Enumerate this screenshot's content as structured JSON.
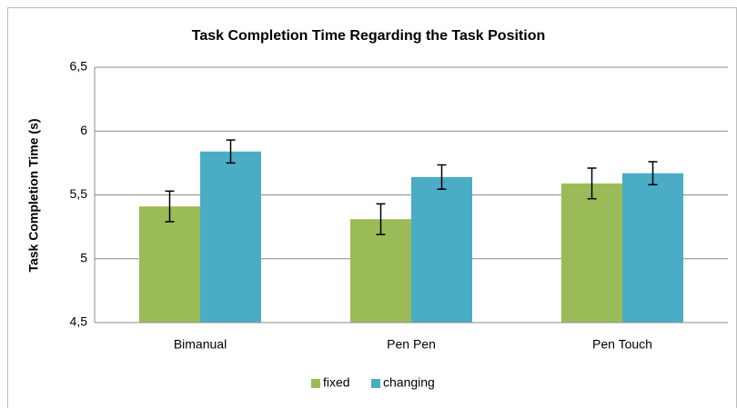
{
  "chart_data": {
    "type": "bar",
    "title": "Task Completion Time Regarding the Task Position",
    "y_label": "Task Completion Time (s)",
    "categories": [
      "Bimanual",
      "Pen Pen",
      "Pen Touch"
    ],
    "series": [
      {
        "name": "fixed",
        "color": "#9bbb59",
        "values": [
          5.41,
          5.31,
          5.59
        ],
        "errors": [
          0.12,
          0.12,
          0.12
        ]
      },
      {
        "name": "changing",
        "color": "#4bacc6",
        "values": [
          5.84,
          5.64,
          5.67
        ],
        "errors": [
          0.09,
          0.095,
          0.09
        ]
      }
    ],
    "ylim": [
      4.5,
      6.5
    ],
    "yticks": [
      {
        "value": 4.5,
        "label": "4,5"
      },
      5,
      {
        "value": 5.5,
        "label": "5,5"
      },
      6,
      {
        "value": 6.5,
        "label": "6,5"
      }
    ],
    "grid": true,
    "legend": "bottom"
  }
}
